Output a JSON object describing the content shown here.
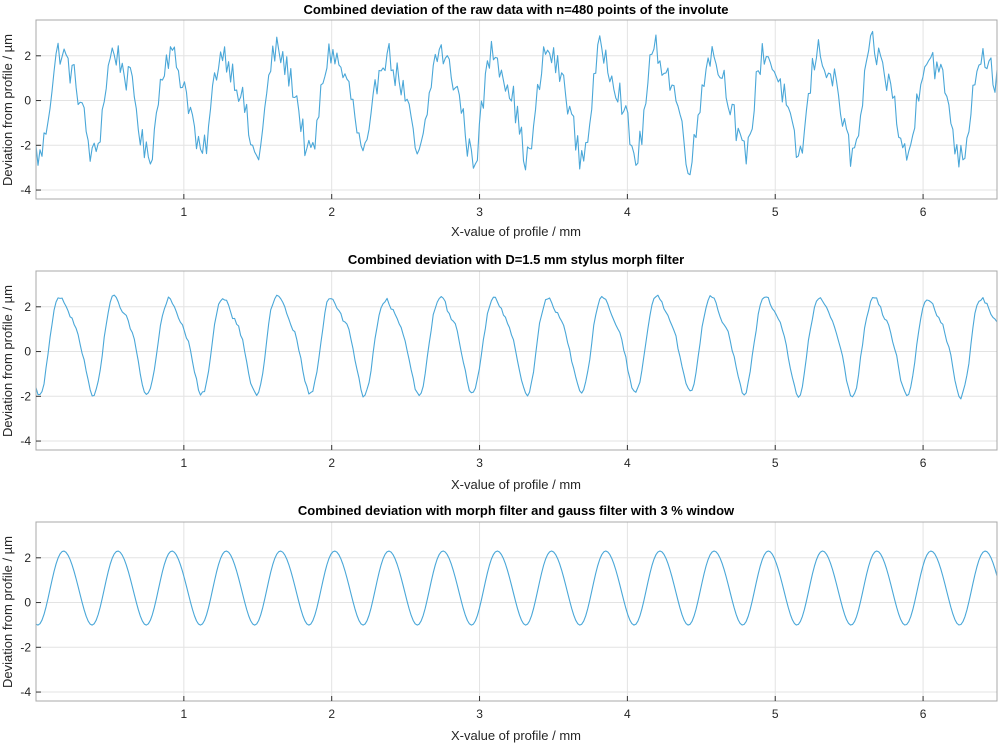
{
  "chart_data": [
    {
      "type": "line",
      "title": "Combined deviation of the raw data with n=480 points of the involute",
      "xlabel": "X-value of profile / mm",
      "ylabel": "Deviation from profile / µm",
      "xlim": [
        0.0,
        6.5
      ],
      "ylim": [
        -4.4,
        3.6
      ],
      "xticks": [
        1,
        2,
        3,
        4,
        5,
        6
      ],
      "yticks": [
        -4,
        -2,
        0,
        2
      ],
      "grid": true,
      "color": "#4aa7d8",
      "n_points": 480,
      "period_mm": 0.3667,
      "amplitude_um": 2.2,
      "offset_um": 0.1,
      "noise_um": 0.75,
      "phase_mm": 0.1
    },
    {
      "type": "line",
      "title": "Combined deviation with D=1.5 mm stylus morph filter",
      "xlabel": "X-value of profile / mm",
      "ylabel": "Deviation from profile / µm",
      "xlim": [
        0.0,
        6.5
      ],
      "ylim": [
        -4.4,
        3.6
      ],
      "xticks": [
        1,
        2,
        3,
        4,
        5,
        6
      ],
      "yticks": [
        -4,
        -2,
        0,
        2
      ],
      "grid": true,
      "color": "#4aa7d8",
      "n_points": 480,
      "period_mm": 0.3667,
      "amplitude_um": 2.0,
      "offset_um": 0.5,
      "noise_um": 0.3,
      "phase_mm": 0.1
    },
    {
      "type": "line",
      "title": "Combined deviation with morph filter and gauss filter with 3 % window",
      "xlabel": "X-value of profile / mm",
      "ylabel": "Deviation from profile / µm",
      "xlim": [
        0.0,
        6.5
      ],
      "ylim": [
        -4.4,
        3.6
      ],
      "xticks": [
        1,
        2,
        3,
        4,
        5,
        6
      ],
      "yticks": [
        -4,
        -2,
        0,
        2
      ],
      "grid": true,
      "color": "#4aa7d8",
      "n_points": 480,
      "period_mm": 0.3667,
      "amplitude_um": 1.65,
      "offset_um": 0.7,
      "noise_um": 0.0,
      "phase_mm": 0.1
    }
  ]
}
